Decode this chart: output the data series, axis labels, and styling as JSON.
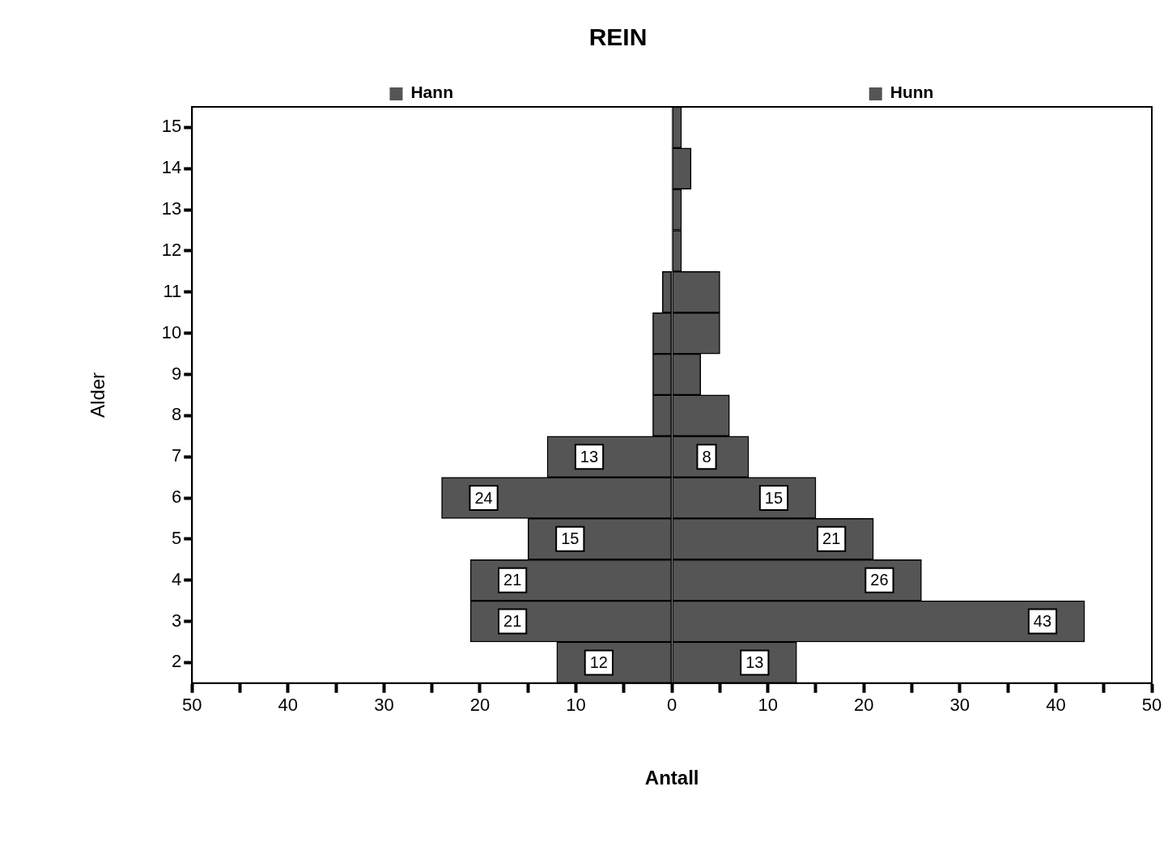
{
  "chart_data": {
    "type": "bar",
    "orientation": "horizontal",
    "title": "REIN",
    "xlabel": "Antall",
    "ylabel": "Alder",
    "categories": [
      "15",
      "14",
      "13",
      "12",
      "11",
      "10",
      "9",
      "8",
      "7",
      "6",
      "5",
      "4",
      "3",
      "2"
    ],
    "series": [
      {
        "name": "Hann",
        "color": "#555555",
        "base": [
          0,
          0,
          0,
          0,
          -1,
          -2,
          -2,
          -2,
          -13,
          -24,
          -15,
          -21,
          -21,
          -12
        ],
        "values": [
          0,
          0,
          0,
          0,
          1,
          2,
          2,
          2,
          13,
          24,
          15,
          21,
          21,
          12
        ],
        "value_labels": [
          null,
          null,
          null,
          null,
          null,
          null,
          null,
          null,
          "13",
          "24",
          "15",
          "21",
          "21",
          "12"
        ]
      },
      {
        "name": "Hunn",
        "color": "#555555",
        "values": [
          1,
          2,
          1,
          1,
          5,
          5,
          3,
          6,
          8,
          15,
          21,
          26,
          43,
          13
        ],
        "value_labels": [
          null,
          null,
          null,
          null,
          null,
          null,
          null,
          null,
          "8",
          "15",
          "21",
          "26",
          "43",
          "13"
        ]
      }
    ],
    "xlim": [
      -50,
      50
    ],
    "xticks": [
      {
        "value": -50,
        "label": "50"
      },
      {
        "value": -45,
        "label": null
      },
      {
        "value": -40,
        "label": "40"
      },
      {
        "value": -35,
        "label": null
      },
      {
        "value": -30,
        "label": "30"
      },
      {
        "value": -25,
        "label": null
      },
      {
        "value": -20,
        "label": "20"
      },
      {
        "value": -15,
        "label": null
      },
      {
        "value": -10,
        "label": "10"
      },
      {
        "value": -5,
        "label": null
      },
      0,
      {
        "value": 5,
        "label": null
      },
      10,
      {
        "value": 15,
        "label": null
      },
      20,
      {
        "value": 25,
        "label": null
      },
      30,
      {
        "value": 35,
        "label": null
      },
      40,
      {
        "value": 45,
        "label": null
      },
      50
    ],
    "grid": false,
    "legend": "top"
  }
}
